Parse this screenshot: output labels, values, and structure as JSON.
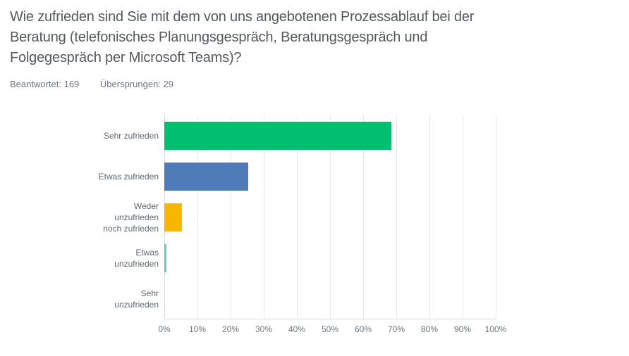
{
  "header": {
    "title": "Wie zufrieden sind Sie mit dem von uns angebotenen Prozessablauf bei der\nBeratung (telefonisches Planungsgespräch, Beratungsgespräch und\nFolgegespräch per Microsoft Teams)?",
    "answered": "Beantwortet: 169",
    "skipped": "Übersprungen: 29"
  },
  "chart_data": {
    "type": "bar",
    "orientation": "horizontal",
    "title": "Wie zufrieden sind Sie mit dem von uns angebotenen Prozessablauf bei der Beratung (telefonisches Planungsgespräch, Beratungsgespräch und Folgegespräch per Microsoft Teams)?",
    "categories": [
      "Sehr zufrieden",
      "Etwas zufrieden",
      "Weder unzufrieden noch zufrieden",
      "Etwas unzufrieden",
      "Sehr unzufrieden"
    ],
    "label_lines": [
      [
        "Sehr zufrieden"
      ],
      [
        "Etwas zufrieden"
      ],
      [
        "Weder",
        "unzufrieden",
        "noch zufrieden"
      ],
      [
        "Etwas",
        "unzufrieden"
      ],
      [
        "Sehr",
        "unzufrieden"
      ]
    ],
    "values": [
      68.6,
      25.4,
      5.3,
      0.6,
      0
    ],
    "bar_colors": [
      "#00bf6f",
      "#4f7cb8",
      "#f7b600",
      "#6ec7c6",
      null
    ],
    "x_ticks": [
      "0%",
      "10%",
      "20%",
      "30%",
      "40%",
      "50%",
      "60%",
      "70%",
      "80%",
      "90%",
      "100%"
    ],
    "xlabel": "",
    "ylabel": "",
    "xlim": [
      0,
      100
    ],
    "grid": true,
    "legend": false
  }
}
